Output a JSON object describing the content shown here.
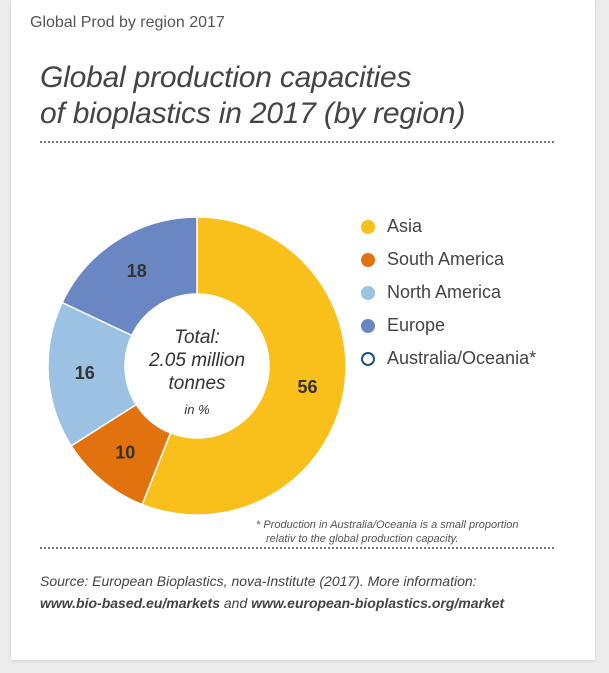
{
  "caption": "Global Prod by region 2017",
  "title_lines": [
    "Global production capacities",
    "of bioplastics in 2017 (by region)"
  ],
  "center_label": {
    "line1": "Total:",
    "line2": "2.05 million",
    "line3": "tonnes",
    "unit": "in %"
  },
  "colors": {
    "Asia": "#f9bf1b",
    "South America": "#e2720e",
    "North America": "#9cc2e3",
    "Europe": "#6a86c3",
    "Australia/Oceania": "#ffffff",
    "Australia/Oceania_border": "#1f4e8c",
    "value_label": "#333333"
  },
  "chart_data": {
    "type": "pie",
    "donut": true,
    "title": "Global production capacities of bioplastics in 2017 (by region)",
    "slices": [
      {
        "label": "Asia",
        "value": 56
      },
      {
        "label": "South America",
        "value": 10
      },
      {
        "label": "North America",
        "value": 16
      },
      {
        "label": "Europe",
        "value": 18
      }
    ],
    "legend": [
      "Asia",
      "South America",
      "North America",
      "Europe",
      "Australia/Oceania*"
    ],
    "legend_position": "right"
  },
  "footnote": {
    "line1": "* Production in Australia/Oceania is a small proportion",
    "line2": "relativ to the global production capacity."
  },
  "source": {
    "text1": "Source: European Bioplastics, nova-Institute (2017). More information:",
    "link1": "www.bio-based.eu/markets",
    "joiner": " and ",
    "link2": "www.european-bioplastics.org/market"
  }
}
